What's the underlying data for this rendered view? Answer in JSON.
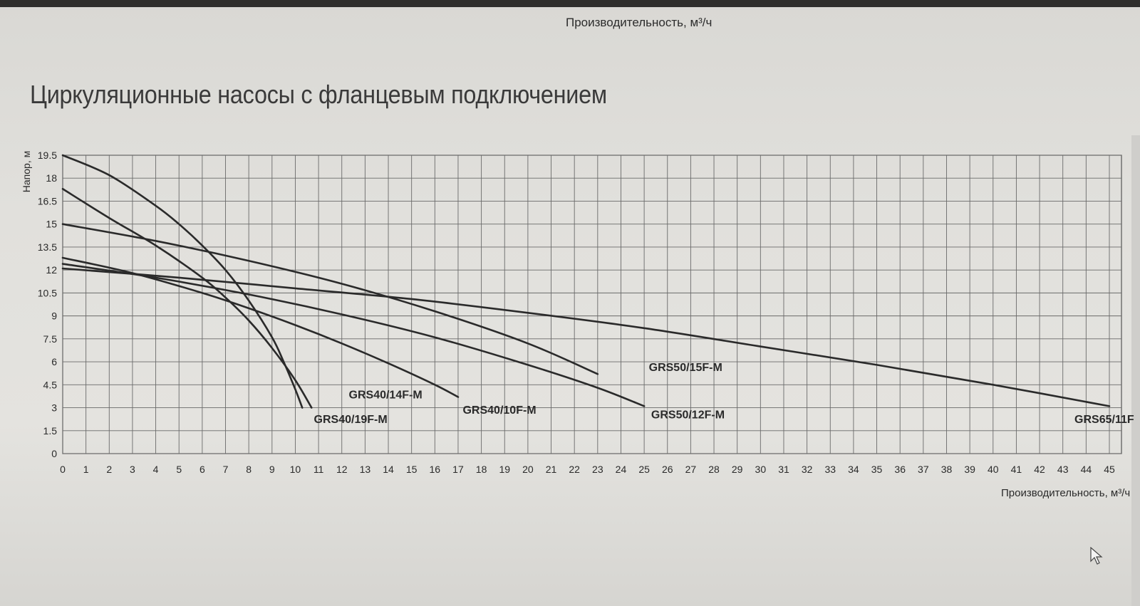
{
  "page": {
    "top_label": "Производительность, м³/ч",
    "title": "Циркуляционные насосы с фланцевым подключением"
  },
  "chart_data": {
    "type": "line",
    "title": "Циркуляционные насосы с фланцевым подключением",
    "xlabel": "Производительность, м³/ч",
    "ylabel": "Напор, м",
    "xlim": [
      0,
      45
    ],
    "ylim": [
      0,
      19.5
    ],
    "x_ticks": [
      0,
      1,
      2,
      3,
      4,
      5,
      6,
      7,
      8,
      9,
      10,
      11,
      12,
      13,
      14,
      15,
      16,
      17,
      18,
      19,
      20,
      21,
      22,
      23,
      24,
      25,
      26,
      27,
      28,
      29,
      30,
      31,
      32,
      33,
      34,
      35,
      36,
      37,
      38,
      39,
      40,
      41,
      42,
      43,
      44,
      45
    ],
    "y_ticks": [
      0,
      1.5,
      3,
      4.5,
      6,
      7.5,
      9,
      10.5,
      12,
      13.5,
      15,
      16.5,
      18,
      19.5
    ],
    "y_tick_labels": [
      "0",
      "1.5",
      "3",
      "4.5",
      "6",
      "7.5",
      "9",
      "10.5",
      "12",
      "13.5",
      "15",
      "16.5",
      "18",
      "19.5"
    ],
    "grid": true,
    "series": [
      {
        "name": "GRS40/19F-M",
        "label_x": 10.8,
        "label_y": 2.0,
        "x": [
          0,
          2,
          4,
          5,
          6,
          7,
          8,
          9,
          9.5,
          10,
          10.3
        ],
        "y": [
          19.5,
          18.2,
          16.2,
          15.0,
          13.6,
          12.0,
          10.0,
          7.6,
          6.0,
          4.2,
          3.0
        ]
      },
      {
        "name": "GRS40/14F-M",
        "label_x": 12.3,
        "label_y": 3.6,
        "x": [
          0,
          2,
          4,
          6,
          7,
          8,
          9,
          10,
          10.7
        ],
        "y": [
          17.3,
          15.4,
          13.6,
          11.5,
          10.2,
          8.7,
          6.9,
          4.8,
          3.0
        ]
      },
      {
        "name": "GRS40/10F-M",
        "label_x": 17.2,
        "label_y": 2.6,
        "x": [
          0,
          3,
          6,
          8,
          10,
          12,
          14,
          16,
          17
        ],
        "y": [
          12.8,
          11.8,
          10.5,
          9.5,
          8.4,
          7.2,
          5.9,
          4.5,
          3.7
        ]
      },
      {
        "name": "GRS50/12F-M",
        "label_x": 25.3,
        "label_y": 2.3,
        "x": [
          0,
          4,
          8,
          12,
          16,
          20,
          23,
          25
        ],
        "y": [
          12.4,
          11.5,
          10.4,
          9.1,
          7.6,
          5.8,
          4.3,
          3.1
        ]
      },
      {
        "name": "GRS50/15F-M",
        "label_x": 25.2,
        "label_y": 5.4,
        "x": [
          0,
          4,
          8,
          12,
          16,
          20,
          23
        ],
        "y": [
          15.0,
          13.9,
          12.6,
          11.1,
          9.3,
          7.2,
          5.2
        ]
      },
      {
        "name": "GRS65/11F",
        "label_x": 43.5,
        "label_y": 2.0,
        "x": [
          0,
          5,
          10,
          15,
          20,
          25,
          30,
          35,
          40,
          45
        ],
        "y": [
          12.1,
          11.5,
          10.8,
          10.1,
          9.2,
          8.2,
          7.0,
          5.8,
          4.5,
          3.1
        ]
      }
    ]
  }
}
